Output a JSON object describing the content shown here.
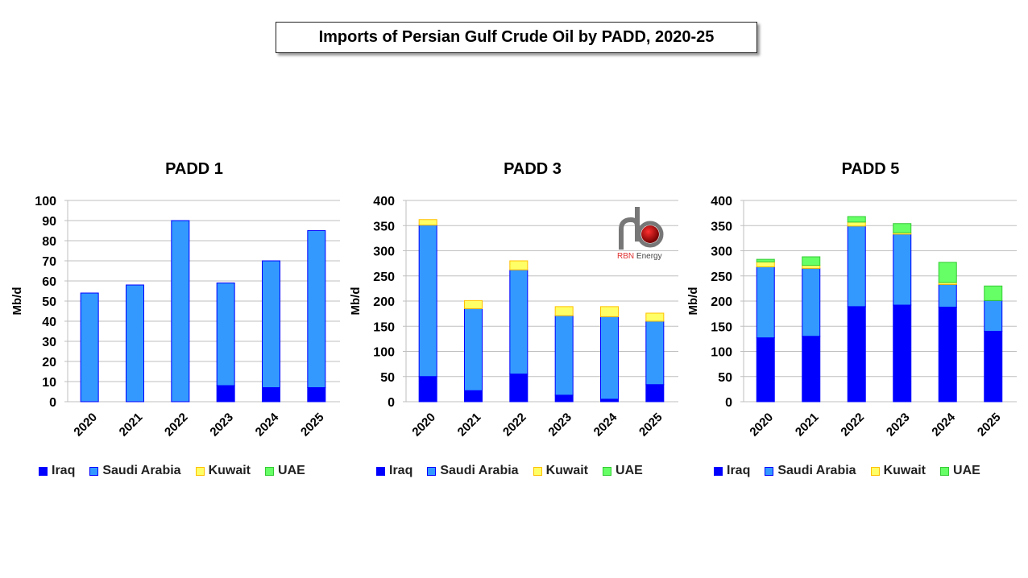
{
  "title": "Imports of Persian Gulf Crude Oil by PADD, 2020-25",
  "logo_text": "RBN Energy",
  "colors": {
    "Iraq": {
      "fill": "#0000FF",
      "stroke": "#0000FF"
    },
    "Saudi Arabia": {
      "fill": "#3399FF",
      "stroke": "#0000FF"
    },
    "Kuwait": {
      "fill": "#FFFF66",
      "stroke": "#FFC000"
    },
    "UAE": {
      "fill": "#66FF66",
      "stroke": "#33CC33"
    }
  },
  "chart_data": [
    {
      "type": "bar",
      "stacked": true,
      "title": "PADD 1",
      "ylabel": "Mb/d",
      "xlabel": "",
      "ylim": [
        0,
        100
      ],
      "yticks": [
        0,
        10,
        20,
        30,
        40,
        50,
        60,
        70,
        80,
        90,
        100
      ],
      "categories": [
        "2020",
        "2021",
        "2022",
        "2023",
        "2024",
        "2025"
      ],
      "legend": "bottom",
      "series": [
        {
          "name": "Iraq",
          "values": [
            0,
            0,
            0,
            8,
            7,
            7
          ]
        },
        {
          "name": "Saudi Arabia",
          "values": [
            54,
            58,
            90,
            51,
            63,
            78
          ]
        },
        {
          "name": "Kuwait",
          "values": [
            0,
            0,
            0,
            0,
            0,
            0
          ]
        },
        {
          "name": "UAE",
          "values": [
            0,
            0,
            0,
            0,
            0,
            0
          ]
        }
      ]
    },
    {
      "type": "bar",
      "stacked": true,
      "title": "PADD 3",
      "ylabel": "Mb/d",
      "xlabel": "",
      "ylim": [
        0,
        400
      ],
      "yticks": [
        0,
        50,
        100,
        150,
        200,
        250,
        300,
        350,
        400
      ],
      "categories": [
        "2020",
        "2021",
        "2022",
        "2023",
        "2024",
        "2025"
      ],
      "legend": "bottom",
      "series": [
        {
          "name": "Iraq",
          "values": [
            50,
            22,
            55,
            13,
            5,
            34
          ]
        },
        {
          "name": "Saudi Arabia",
          "values": [
            301,
            163,
            207,
            158,
            164,
            126
          ]
        },
        {
          "name": "Kuwait",
          "values": [
            11,
            16,
            18,
            18,
            20,
            16
          ]
        },
        {
          "name": "UAE",
          "values": [
            0,
            0,
            0,
            0,
            0,
            0
          ]
        }
      ]
    },
    {
      "type": "bar",
      "stacked": true,
      "title": "PADD 5",
      "ylabel": "Mb/d",
      "xlabel": "",
      "ylim": [
        0,
        400
      ],
      "yticks": [
        0,
        50,
        100,
        150,
        200,
        250,
        300,
        350,
        400
      ],
      "categories": [
        "2020",
        "2021",
        "2022",
        "2023",
        "2024",
        "2025"
      ],
      "legend": "bottom",
      "series": [
        {
          "name": "Iraq",
          "values": [
            127,
            130,
            189,
            192,
            188,
            140
          ]
        },
        {
          "name": "Saudi Arabia",
          "values": [
            141,
            135,
            160,
            141,
            45,
            61
          ]
        },
        {
          "name": "Kuwait",
          "values": [
            10,
            6,
            8,
            3,
            4,
            0
          ]
        },
        {
          "name": "UAE",
          "values": [
            5,
            17,
            11,
            18,
            40,
            29
          ]
        }
      ]
    }
  ]
}
